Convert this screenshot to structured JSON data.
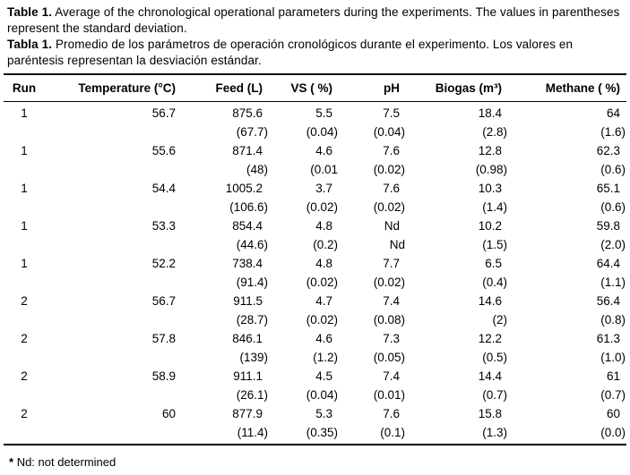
{
  "caption": {
    "en_label": "Table 1.",
    "en_text": "Average of the chronological operational parameters during the experiments. The values in parentheses represent the standard deviation.",
    "es_label": "Tabla 1.",
    "es_text": "Promedio de los parámetros de operación cronológicos durante el experimento. Los valores en paréntesis representan la desviación estándar."
  },
  "table": {
    "column_keys": [
      "run",
      "temperature",
      "feed",
      "vs",
      "ph",
      "biogas",
      "methane"
    ],
    "columns": [
      "Run",
      "Temperature (°C)",
      "Feed (L)",
      "VS ( %)",
      "pH",
      "Biogas (m³)",
      "Methane ( %)"
    ],
    "rows": [
      {
        "main": [
          "1",
          "56.7",
          "875.6",
          "5.5",
          "7.5",
          "18.4",
          "64"
        ],
        "sd": [
          "",
          "",
          "(67.7)",
          "(0.04)",
          "(0.04)",
          "(2.8)",
          "(1.6)"
        ]
      },
      {
        "main": [
          "1",
          "55.6",
          "871.4",
          "4.6",
          "7.6",
          "12.8",
          "62.3"
        ],
        "sd": [
          "",
          "",
          "(48)",
          "(0.01",
          "(0.02)",
          "(0.98)",
          "(0.6)"
        ]
      },
      {
        "main": [
          "1",
          "54.4",
          "1005.2",
          "3.7",
          "7.6",
          "10.3",
          "65.1"
        ],
        "sd": [
          "",
          "",
          "(106.6)",
          "(0.02)",
          "(0.02)",
          "(1.4)",
          "(0.6)"
        ]
      },
      {
        "main": [
          "1",
          "53.3",
          "854.4",
          "4.8",
          "Nd",
          "10.2",
          "59.8"
        ],
        "sd": [
          "",
          "",
          "(44.6)",
          "(0.2)",
          "Nd",
          "(1.5)",
          "(2.0)"
        ]
      },
      {
        "main": [
          "1",
          "52.2",
          "738.4",
          "4.8",
          "7.7",
          "6.5",
          "64.4"
        ],
        "sd": [
          "",
          "",
          "(91.4)",
          "(0.02)",
          "(0.02)",
          "(0.4)",
          "(1.1)"
        ]
      },
      {
        "main": [
          "2",
          "56.7",
          "911.5",
          "4.7",
          "7.4",
          "14.6",
          "56.4"
        ],
        "sd": [
          "",
          "",
          "(28.7)",
          "(0.02)",
          "(0.08)",
          "(2)",
          "(0.8)"
        ]
      },
      {
        "main": [
          "2",
          "57.8",
          "846.1",
          "4.6",
          "7.3",
          "12.2",
          "61.3"
        ],
        "sd": [
          "",
          "",
          "(139)",
          "(1.2)",
          "(0.05)",
          "(0.5)",
          "(1.0)"
        ]
      },
      {
        "main": [
          "2",
          "58.9",
          "911.1",
          "4.5",
          "7.4",
          "14.4",
          "61"
        ],
        "sd": [
          "",
          "",
          "(26.1)",
          "(0.04)",
          "(0.01)",
          "(0.7)",
          "(0.7)"
        ]
      },
      {
        "main": [
          "2",
          "60",
          "877.9",
          "5.3",
          "7.6",
          "15.8",
          "60"
        ],
        "sd": [
          "",
          "",
          "(11.4)",
          "(0.35)",
          "(0.1)",
          "(1.3)",
          "(0.0)"
        ]
      }
    ]
  },
  "footnote": {
    "marker": "*",
    "text": "Nd: not determined"
  }
}
